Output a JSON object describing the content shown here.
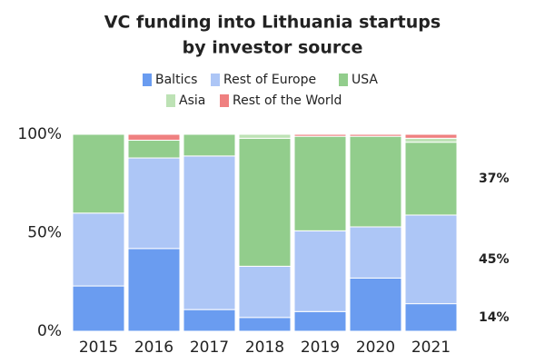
{
  "chart_data": {
    "type": "stacked-bar-100",
    "title": [
      "VC funding into Lithuania startups",
      "by investor source"
    ],
    "categories": [
      "2015",
      "2016",
      "2017",
      "2018",
      "2019",
      "2020",
      "2021"
    ],
    "series": [
      {
        "name": "Baltics",
        "color": "#6a9cf0",
        "label_color": "#3a72d8",
        "values": [
          23,
          42,
          11,
          7,
          10,
          27,
          14
        ],
        "value_labels": [
          null,
          null,
          null,
          null,
          null,
          null,
          "14%"
        ]
      },
      {
        "name": "Rest of Europe",
        "color": "#adc6f6",
        "label_color": "#9fbcf2",
        "values": [
          37,
          46,
          78,
          26,
          41,
          26,
          45
        ],
        "value_labels": [
          null,
          null,
          null,
          null,
          null,
          null,
          "45%"
        ]
      },
      {
        "name": "USA",
        "color": "#92cd8c",
        "label_color": "#7cc276",
        "values": [
          40,
          9,
          11,
          65,
          48,
          46,
          37
        ],
        "value_labels": [
          null,
          null,
          null,
          null,
          null,
          null,
          "37%"
        ]
      },
      {
        "name": "Asia",
        "color": "#bde2b5",
        "values": [
          0,
          0,
          0,
          2,
          0,
          0,
          2
        ]
      },
      {
        "name": "Rest of the World",
        "color": "#ef8080",
        "values": [
          0,
          3,
          0,
          0,
          1,
          1,
          2
        ]
      }
    ],
    "ylim": [
      0,
      100
    ],
    "yticks": [
      {
        "value": 0,
        "label": "0%"
      },
      {
        "value": 50,
        "label": "50%"
      },
      {
        "value": 100,
        "label": "100%"
      }
    ]
  }
}
